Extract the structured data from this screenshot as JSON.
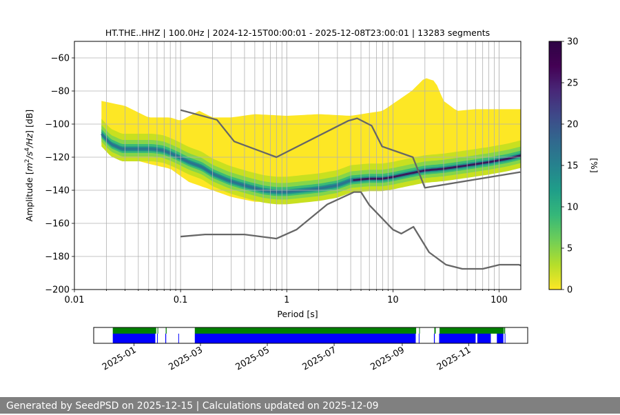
{
  "chart_data": {
    "type": "heatmap",
    "title": "HT.THE..HHZ | 100.0Hz | 2024-12-15T00:00:01 - 2025-12-08T23:00:01 | 13283 segments",
    "xlabel": "Period [s]",
    "ylabel": "Amplitude [m²/s⁴/Hz] [dB]",
    "xscale": "log",
    "xlim": [
      0.01,
      160
    ],
    "ylim": [
      -200,
      -50
    ],
    "xticks": [
      {
        "value": 0.01,
        "label": "0.01"
      },
      {
        "value": 0.1,
        "label": "0.1"
      },
      {
        "value": 1,
        "label": "1"
      },
      {
        "value": 10,
        "label": "10"
      },
      {
        "value": 100,
        "label": "100"
      }
    ],
    "yticks": [
      {
        "value": -60,
        "label": "−60"
      },
      {
        "value": -80,
        "label": "−80"
      },
      {
        "value": -100,
        "label": "−100"
      },
      {
        "value": -120,
        "label": "−120"
      },
      {
        "value": -140,
        "label": "−140"
      },
      {
        "value": -160,
        "label": "−160"
      },
      {
        "value": -180,
        "label": "−180"
      },
      {
        "value": -200,
        "label": "−200"
      }
    ],
    "grid": true,
    "colorbar": {
      "label": "[%]",
      "range": [
        0,
        30
      ],
      "ticks": [
        {
          "value": 0,
          "label": "0"
        },
        {
          "value": 5,
          "label": "5"
        },
        {
          "value": 10,
          "label": "10"
        },
        {
          "value": 15,
          "label": "15"
        },
        {
          "value": 20,
          "label": "20"
        },
        {
          "value": 25,
          "label": "25"
        },
        {
          "value": 30,
          "label": "30"
        }
      ],
      "colormap": "viridis_r"
    },
    "series": [
      {
        "name": "Probability density (mode, ≈25% peak)",
        "x": [
          0.018,
          0.022,
          0.028,
          0.035,
          0.045,
          0.055,
          0.07,
          0.09,
          0.12,
          0.16,
          0.2,
          0.28,
          0.35,
          0.45,
          0.6,
          0.8,
          1.0,
          1.4,
          2,
          3,
          4,
          6,
          8,
          10,
          14,
          20,
          30,
          50,
          80,
          120,
          160
        ],
        "y": [
          -106,
          -112,
          -115,
          -115,
          -115,
          -115,
          -116,
          -119,
          -123,
          -126,
          -130,
          -134,
          -136,
          -138,
          -140,
          -141,
          -141,
          -140,
          -139,
          -137,
          -134,
          -133,
          -133,
          -132,
          -130,
          -128,
          -127,
          -125,
          -123,
          -121,
          -119
        ]
      },
      {
        "name": "Upper envelope of distribution",
        "x": [
          0.018,
          0.03,
          0.05,
          0.08,
          0.1,
          0.15,
          0.2,
          0.3,
          0.5,
          1,
          2,
          4,
          8,
          15,
          20,
          25,
          30,
          40,
          60,
          100,
          160
        ],
        "y": [
          -86,
          -89,
          -96,
          -96,
          -98,
          -92,
          -96,
          -96,
          -94,
          -95,
          -94,
          -95,
          -92,
          -80,
          -72,
          -74,
          -86,
          -92,
          -91,
          -91,
          -91
        ]
      },
      {
        "name": "Lower envelope of distribution",
        "x": [
          0.018,
          0.03,
          0.05,
          0.08,
          0.12,
          0.2,
          0.3,
          0.5,
          1,
          2,
          5,
          10,
          20,
          50,
          100,
          160
        ],
        "y": [
          -112,
          -120,
          -124,
          -127,
          -135,
          -140,
          -144,
          -147,
          -147,
          -145,
          -138,
          -134,
          -129,
          -125,
          -121,
          -118
        ]
      },
      {
        "name": "NHNM",
        "x": [
          0.1,
          0.22,
          0.32,
          0.8,
          3.8,
          4.6,
          6.3,
          7.9,
          15.4,
          20,
          158
        ],
        "y": [
          -91.5,
          -97.4,
          -110.5,
          -120,
          -98,
          -96.5,
          -101,
          -113.5,
          -120,
          -138.5,
          -129
        ]
      },
      {
        "name": "NLNM",
        "x": [
          0.1,
          0.17,
          0.4,
          0.8,
          1.24,
          2.4,
          4.3,
          5,
          6,
          10,
          12,
          15.6,
          21.9,
          31.6,
          45,
          70,
          101,
          154,
          160
        ],
        "y": [
          -168,
          -166.7,
          -166.7,
          -169.2,
          -163.7,
          -148.6,
          -141.1,
          -141.1,
          -149,
          -163.8,
          -166.2,
          -162.1,
          -177.5,
          -185,
          -187.5,
          -187.5,
          -185,
          -185,
          -185.5
        ]
      }
    ],
    "timeline": {
      "tick_labels": [
        {
          "label": "2025-01",
          "frac": 0.093
        },
        {
          "label": "2025-03",
          "frac": 0.246
        },
        {
          "label": "2025-05",
          "frac": 0.4
        },
        {
          "label": "2025-07",
          "frac": 0.554
        },
        {
          "label": "2025-09",
          "frac": 0.711
        },
        {
          "label": "2025-11",
          "frac": 0.864
        }
      ],
      "green_segments": [
        [
          0.044,
          0.144
        ],
        [
          0.147,
          0.148
        ],
        [
          0.166,
          0.168
        ],
        [
          0.233,
          0.743
        ],
        [
          0.75,
          0.751
        ],
        [
          0.785,
          0.788
        ],
        [
          0.797,
          0.945
        ],
        [
          0.948,
          0.946
        ]
      ],
      "blue_segments": [
        [
          0.044,
          0.142
        ],
        [
          0.146,
          0.147
        ],
        [
          0.165,
          0.167
        ],
        [
          0.195,
          0.196
        ],
        [
          0.233,
          0.742
        ],
        [
          0.749,
          0.75
        ],
        [
          0.784,
          0.786
        ],
        [
          0.796,
          0.88
        ],
        [
          0.884,
          0.915
        ],
        [
          0.929,
          0.944
        ],
        [
          0.947,
          0.948
        ]
      ],
      "colors": {
        "green": "#008000",
        "blue": "#0000ff"
      }
    },
    "colors": {
      "model_lines": "#666666",
      "grid": "#b0b0b0"
    }
  },
  "footer": {
    "text": "Generated by SeedPSD on 2025-12-15 | Calculations updated on 2025-12-09"
  }
}
